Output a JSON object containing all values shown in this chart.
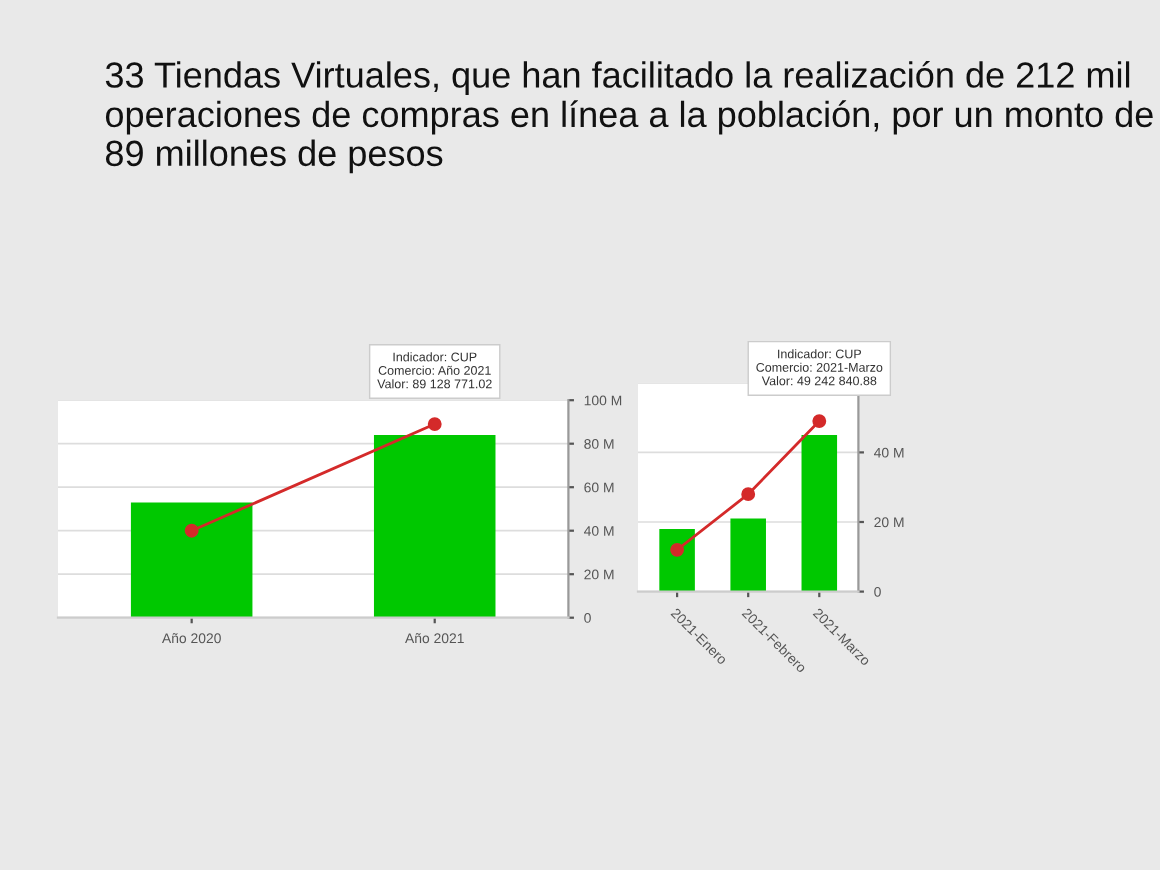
{
  "chart_data": [
    {
      "type": "bar",
      "title": "33 Tiendas Virtuales, que han facilitado la realización de 212 mil operaciones de compras en línea a la población, por un monto de 89 millones de pesos",
      "categories": [
        "Año 2020",
        "Año 2021"
      ],
      "series": [
        {
          "color": "#00c800",
          "values": [
            53,
            84
          ]
        },
        {
          "type": "line",
          "color": "#d42a2a",
          "values": [
            40,
            89
          ],
          "marker": "circle"
        }
      ],
      "ylim": [
        0,
        100
      ],
      "yticks": [
        0,
        {
          "value": 20,
          "label": "20 M"
        },
        {
          "value": 40,
          "label": "40 M"
        },
        {
          "value": 60,
          "label": "60 M"
        },
        {
          "value": 80,
          "label": "80 M"
        },
        {
          "value": 100,
          "label": "100 M"
        }
      ],
      "grid": "y",
      "legend": false,
      "annotations": [
        {
          "text": "Indicador: CUP\nComercio: Año 2021\nValor: 89 128 771.02",
          "x": "Año 2021",
          "y": 89
        }
      ]
    },
    {
      "type": "bar",
      "categories": [
        "2021-Enero",
        "2021-Febrero",
        "2021-Marzo"
      ],
      "series": [
        {
          "color": "#00c800",
          "values": [
            18,
            21,
            45
          ]
        },
        {
          "type": "line",
          "color": "#d42a2a",
          "values": [
            12,
            28,
            49
          ],
          "marker": "circle"
        }
      ],
      "ylim": [
        0,
        60
      ],
      "yticks": [
        0,
        {
          "value": 20,
          "label": "20 M"
        },
        {
          "value": 40,
          "label": "40 M"
        },
        {
          "value": 60,
          "label": null
        }
      ],
      "grid": "y",
      "legend": false,
      "annotations": [
        {
          "text": "Indicador: CUP\nComercio: 2021-Marzo\nValor: 49 242 840.88",
          "x": "2021-Marzo",
          "y": 49
        }
      ]
    }
  ]
}
